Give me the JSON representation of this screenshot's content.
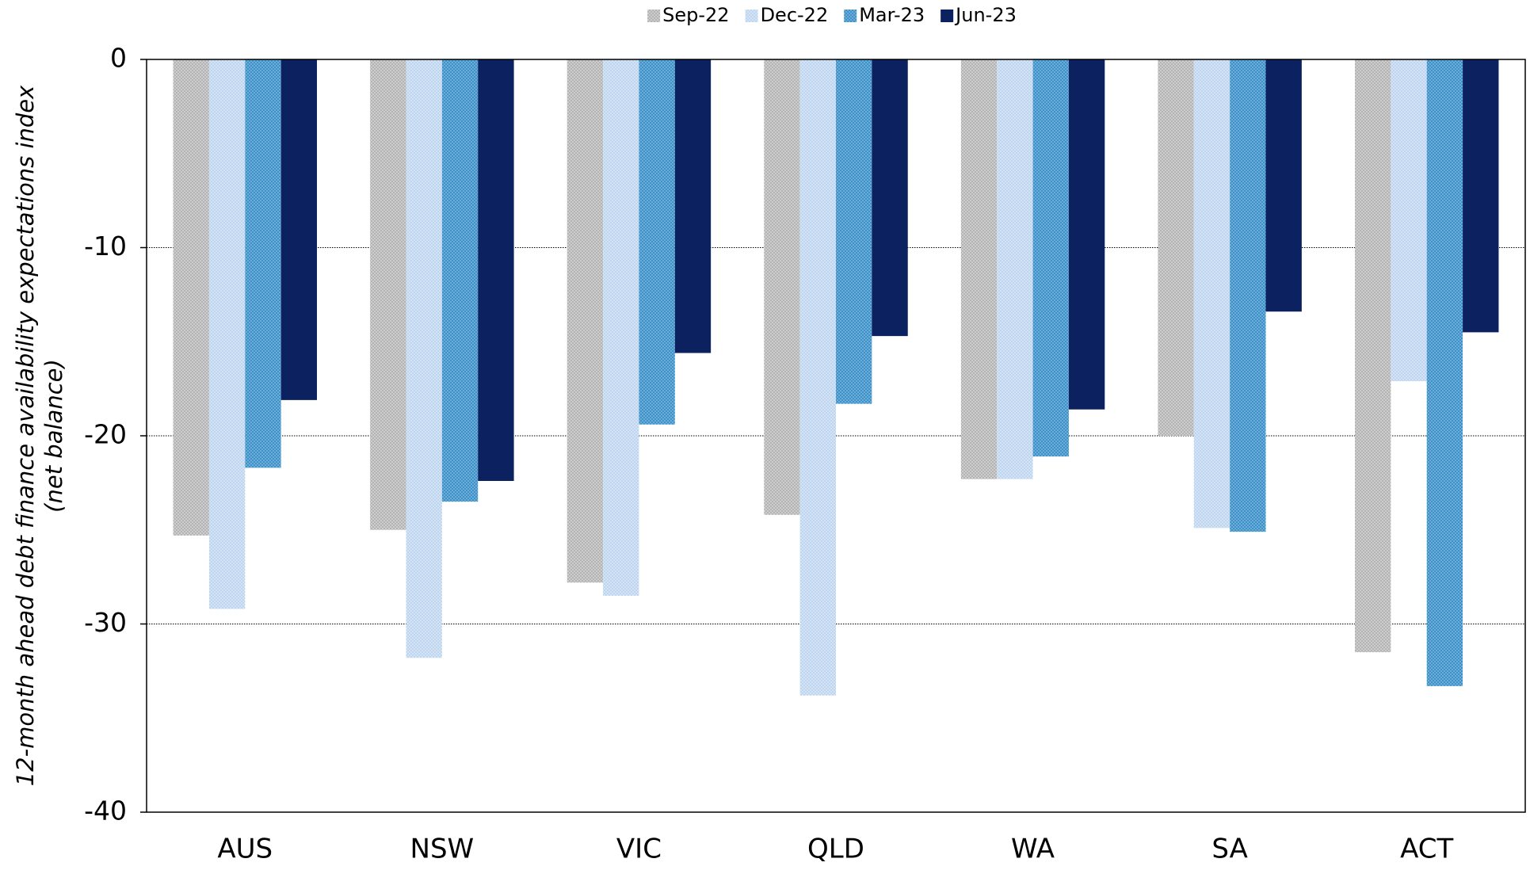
{
  "chart_data": {
    "type": "bar",
    "ylabel": [
      "12-month ahead debt finance availability expectations index",
      "(net balance)"
    ],
    "categories": [
      "AUS",
      "NSW",
      "VIC",
      "QLD",
      "WA",
      "SA",
      "ACT"
    ],
    "series": [
      {
        "name": "Sep-22",
        "color": "#b3b3b3",
        "values": [
          -25.3,
          -25.0,
          -27.8,
          -24.2,
          -22.3,
          -20.0,
          -31.5
        ]
      },
      {
        "name": "Dec-22",
        "color": "#bed5ef",
        "values": [
          -29.2,
          -31.8,
          -28.5,
          -33.8,
          -22.3,
          -24.9,
          -17.1
        ]
      },
      {
        "name": "Mar-23",
        "color": "#3d91c9",
        "values": [
          -21.7,
          -23.5,
          -19.4,
          -18.3,
          -21.1,
          -25.1,
          -33.3
        ]
      },
      {
        "name": "Jun-23",
        "color": "#0b2160",
        "values": [
          -18.1,
          -22.4,
          -15.6,
          -14.7,
          -18.6,
          -13.4,
          -14.5
        ]
      }
    ],
    "ylim": [
      -40,
      0
    ],
    "yticks": [
      0,
      -10,
      -20,
      -30,
      -40
    ],
    "grid": true,
    "legend": "top"
  }
}
